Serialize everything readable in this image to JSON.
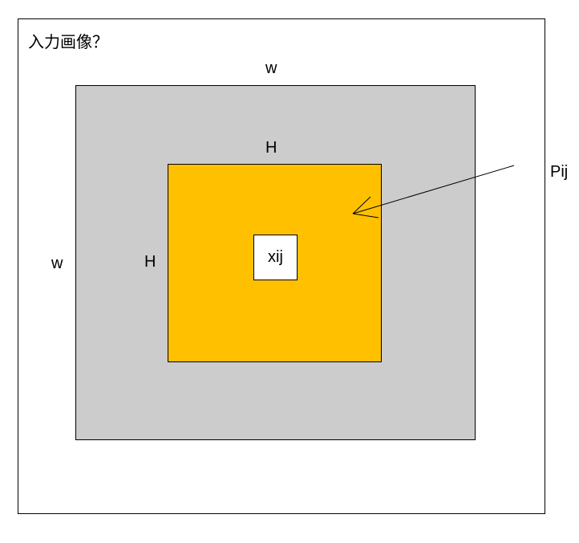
{
  "diagram": {
    "title": "入力画像？",
    "outer_width_label": "w",
    "outer_height_label": "w",
    "inner_width_label": "H",
    "inner_height_label": "H",
    "pixel_label": "xij",
    "pointer_label": "Pij",
    "colors": {
      "outer_fill": "#cccccc",
      "inner_fill": "#ffc000",
      "pixel_fill": "#ffffff",
      "stroke": "#000000"
    }
  }
}
